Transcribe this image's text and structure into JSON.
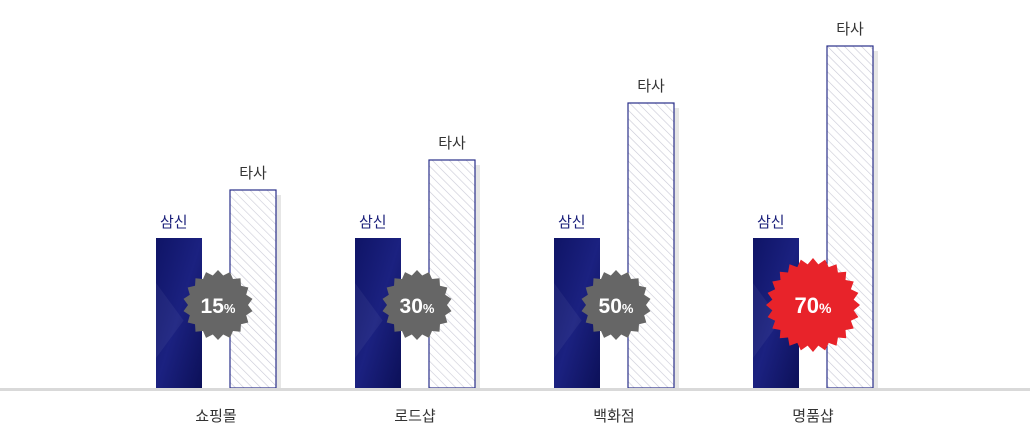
{
  "chart_data": {
    "type": "bar",
    "categories": [
      "쇼핑몰",
      "로드샵",
      "백화점",
      "명품샵"
    ],
    "series": [
      {
        "name": "삼신",
        "values": [
          50,
          50,
          50,
          50
        ],
        "color": "#151a6e",
        "style": "solid"
      },
      {
        "name": "타사",
        "values": [
          66,
          76,
          95,
          114
        ],
        "color": "#2a2f8a",
        "style": "hatched"
      }
    ],
    "badges": [
      {
        "label": "15",
        "unit": "%",
        "color": "#666666"
      },
      {
        "label": "30",
        "unit": "%",
        "color": "#666666"
      },
      {
        "label": "50",
        "unit": "%",
        "color": "#666666"
      },
      {
        "label": "70",
        "unit": "%",
        "color": "#e8232a"
      }
    ],
    "ylim": [
      0,
      120
    ],
    "grid": false,
    "axis_color": "#d9d9d9",
    "label_color_primary": "#1a1f7a",
    "label_color_secondary": "#333333"
  }
}
